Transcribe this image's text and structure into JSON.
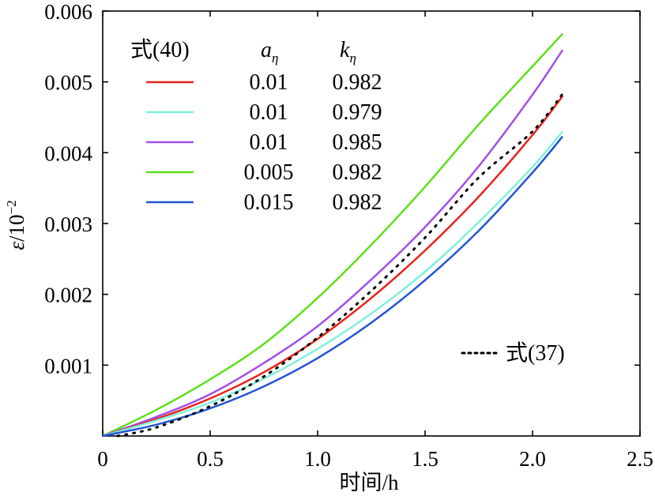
{
  "chart_data": {
    "type": "line",
    "xlabel": "时间/h",
    "ylabel_symbol": "ε",
    "ylabel_unit": "/10",
    "ylabel_exponent": "−2",
    "xlim": [
      0,
      2.5
    ],
    "ylim": [
      0,
      0.006
    ],
    "x_ticks": [
      {
        "value": 0,
        "label": "0"
      },
      {
        "value": 0.5,
        "label": "0.5"
      },
      {
        "value": 1.0,
        "label": "1.0"
      },
      {
        "value": 1.5,
        "label": "1.5"
      },
      {
        "value": 2.0,
        "label": "2.0"
      },
      {
        "value": 2.5,
        "label": "2.5"
      }
    ],
    "y_ticks": [
      {
        "value": 0.001,
        "label": "0.001"
      },
      {
        "value": 0.002,
        "label": "0.002"
      },
      {
        "value": 0.003,
        "label": "0.003"
      },
      {
        "value": 0.004,
        "label": "0.004"
      },
      {
        "value": 0.005,
        "label": "0.005"
      },
      {
        "value": 0.006,
        "label": "0.006"
      }
    ],
    "grid": false,
    "legend": {
      "placement": "top-left",
      "group_label": "式(40)",
      "col_a_symbol": "a",
      "col_k_symbol": "k",
      "subscript": "η",
      "rows": [
        {
          "a": "0.01",
          "k": "0.982",
          "color": "#e8231c"
        },
        {
          "a": "0.01",
          "k": "0.979",
          "color": "#7ff0dc"
        },
        {
          "a": "0.01",
          "k": "0.985",
          "color": "#a24fe6"
        },
        {
          "a": "0.005",
          "k": "0.982",
          "color": "#5de01a"
        },
        {
          "a": "0.015",
          "k": "0.982",
          "color": "#2454d4"
        }
      ],
      "dotted_label": "式(37)"
    },
    "series": [
      {
        "color": "#5de01a",
        "style": "solid",
        "x": [
          0,
          0.25,
          0.5,
          0.75,
          1.0,
          1.25,
          1.5,
          1.75,
          2.0,
          2.14
        ],
        "y": [
          0,
          0.00037,
          0.0008,
          0.0013,
          0.00195,
          0.0027,
          0.00352,
          0.0044,
          0.00522,
          0.00568
        ]
      },
      {
        "color": "#a24fe6",
        "style": "solid",
        "x": [
          0,
          0.25,
          0.5,
          0.75,
          1.0,
          1.25,
          1.5,
          1.75,
          2.0,
          2.14
        ],
        "y": [
          0,
          0.00027,
          0.00059,
          0.00103,
          0.00155,
          0.00221,
          0.00295,
          0.00381,
          0.00482,
          0.00545
        ]
      },
      {
        "color": "#e8231c",
        "style": "solid",
        "x": [
          0,
          0.25,
          0.5,
          0.75,
          1.0,
          1.25,
          1.5,
          1.75,
          2.0,
          2.14
        ],
        "y": [
          0,
          0.00024,
          0.00053,
          0.0009,
          0.00137,
          0.00195,
          0.00262,
          0.00338,
          0.00425,
          0.0048
        ]
      },
      {
        "color": "#7ff0dc",
        "style": "solid",
        "x": [
          0,
          0.25,
          0.5,
          0.75,
          1.0,
          1.25,
          1.5,
          1.75,
          2.0,
          2.14
        ],
        "y": [
          0,
          0.00022,
          0.00047,
          0.00081,
          0.00123,
          0.00173,
          0.00232,
          0.00302,
          0.0038,
          0.0043
        ]
      },
      {
        "color": "#2454d4",
        "style": "solid",
        "x": [
          0,
          0.25,
          0.5,
          0.75,
          1.0,
          1.25,
          1.5,
          1.75,
          2.0,
          2.14
        ],
        "y": [
          0,
          0.00016,
          0.00039,
          0.0007,
          0.0011,
          0.0016,
          0.0022,
          0.0029,
          0.00372,
          0.00423
        ]
      },
      {
        "color": "#000000",
        "style": "dotted",
        "x": [
          0.07,
          0.25,
          0.5,
          0.75,
          1.0,
          1.25,
          1.5,
          1.75,
          2.0,
          2.14
        ],
        "y": [
          0,
          0.00012,
          0.00042,
          0.00084,
          0.00139,
          0.00205,
          0.0028,
          0.00365,
          0.0043,
          0.00483
        ]
      }
    ]
  }
}
